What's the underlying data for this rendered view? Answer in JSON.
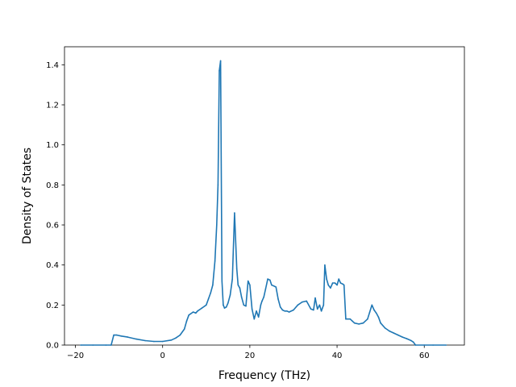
{
  "chart_data": {
    "type": "line",
    "title": "",
    "xlabel": "Frequency (THz)",
    "ylabel": "Density of States",
    "xlim": [
      -22.5,
      69.2
    ],
    "ylim": [
      0.0,
      1.49
    ],
    "grid": false,
    "legend": "none",
    "x_ticks": [
      -20,
      0,
      20,
      40,
      60
    ],
    "x_tick_labels": [
      "−20",
      "0",
      "20",
      "40",
      "60"
    ],
    "y_ticks": [
      0.0,
      0.2,
      0.4,
      0.6,
      0.8,
      1.0,
      1.2,
      1.4
    ],
    "y_tick_labels": [
      "0.0",
      "0.2",
      "0.4",
      "0.6",
      "0.8",
      "1.0",
      "1.2",
      "1.4"
    ],
    "series": [
      {
        "name": "",
        "color": "#1f77b4",
        "x": [
          -18.8,
          -16,
          -13,
          -11.8,
          -11.2,
          -10.5,
          -9.5,
          -8,
          -6,
          -4,
          -2,
          0,
          2,
          3,
          4,
          5,
          5.5,
          6,
          7,
          7.6,
          8,
          9,
          10,
          10.5,
          11,
          11.5,
          12,
          12.4,
          12.7,
          13.0,
          13.3,
          13.6,
          13.9,
          14.2,
          14.6,
          15,
          15.5,
          16,
          16.5,
          17,
          17.3,
          17.7,
          18.1,
          18.6,
          19.1,
          19.6,
          20,
          20.5,
          21,
          21.5,
          22,
          22.5,
          22.8,
          23.2,
          23.6,
          24.1,
          24.6,
          25,
          25.5,
          26,
          26.5,
          27,
          27.5,
          28,
          28.5,
          29,
          30,
          31,
          32,
          33,
          34,
          34.6,
          35,
          35.5,
          36,
          36.4,
          36.9,
          37.2,
          37.6,
          38,
          38.5,
          39,
          39.5,
          40,
          40.4,
          40.8,
          41.3,
          41.6,
          42.0,
          42.2,
          43,
          43.5,
          44,
          45,
          46,
          47,
          47.5,
          48,
          48.5,
          49,
          49.5,
          50,
          51,
          52,
          53,
          54,
          55,
          56,
          57,
          57.5,
          58,
          60,
          62,
          65
        ],
        "y": [
          0.0,
          0.0,
          0.0,
          0.0,
          0.05,
          0.05,
          0.045,
          0.04,
          0.03,
          0.022,
          0.018,
          0.018,
          0.025,
          0.035,
          0.05,
          0.08,
          0.12,
          0.15,
          0.165,
          0.16,
          0.17,
          0.185,
          0.2,
          0.23,
          0.26,
          0.3,
          0.42,
          0.6,
          0.8,
          1.37,
          1.42,
          0.32,
          0.2,
          0.185,
          0.19,
          0.21,
          0.25,
          0.33,
          0.66,
          0.38,
          0.3,
          0.285,
          0.24,
          0.2,
          0.195,
          0.32,
          0.3,
          0.18,
          0.13,
          0.17,
          0.14,
          0.2,
          0.22,
          0.24,
          0.28,
          0.33,
          0.325,
          0.3,
          0.295,
          0.29,
          0.23,
          0.19,
          0.175,
          0.17,
          0.17,
          0.165,
          0.175,
          0.2,
          0.215,
          0.22,
          0.18,
          0.175,
          0.235,
          0.18,
          0.2,
          0.17,
          0.2,
          0.4,
          0.33,
          0.3,
          0.285,
          0.31,
          0.31,
          0.3,
          0.33,
          0.31,
          0.305,
          0.3,
          0.13,
          0.13,
          0.13,
          0.12,
          0.11,
          0.105,
          0.11,
          0.13,
          0.165,
          0.2,
          0.175,
          0.16,
          0.14,
          0.11,
          0.085,
          0.07,
          0.06,
          0.05,
          0.04,
          0.032,
          0.022,
          0.015,
          0.0,
          0.0,
          0.0,
          0.0
        ]
      }
    ]
  }
}
